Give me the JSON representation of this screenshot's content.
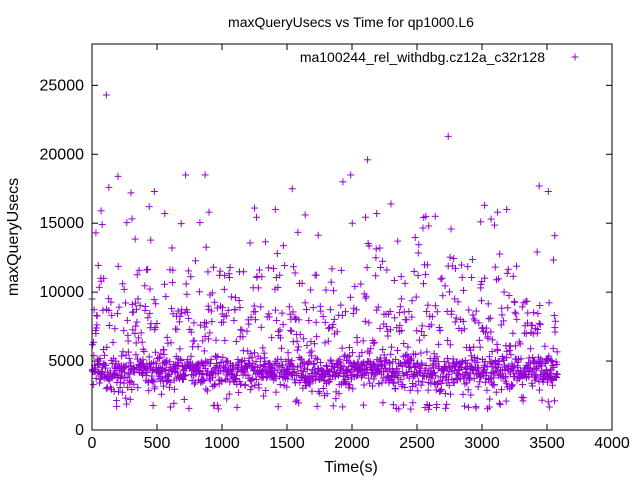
{
  "chart_data": {
    "type": "scatter",
    "title": "maxQueryUsecs vs Time for qp1000.L6",
    "xlabel": "Time(s)",
    "ylabel": "maxQueryUsecs",
    "xlim": [
      0,
      4000
    ],
    "ylim": [
      0,
      28000
    ],
    "x_ticks": [
      0,
      500,
      1000,
      1500,
      2000,
      2500,
      3000,
      3500,
      4000
    ],
    "y_ticks": [
      0,
      5000,
      10000,
      15000,
      20000,
      25000
    ],
    "grid": false,
    "legend_position": "top-right",
    "series": [
      {
        "name": "ma100244_rel_withdbg.cz12a_c32r128",
        "marker": "plus",
        "color": "#9400d3",
        "x_range": [
          0,
          3580
        ],
        "sample_interval_s": 2,
        "notes_visible_outliers": true,
        "points": [
          [
            110,
            24300
          ],
          [
            2740,
            21300
          ],
          [
            2120,
            19600
          ],
          [
            1930,
            18000
          ],
          [
            200,
            18400
          ],
          [
            720,
            18500
          ],
          [
            870,
            18500
          ],
          [
            1990,
            18500
          ],
          [
            130,
            17600
          ],
          [
            300,
            17200
          ],
          [
            480,
            17300
          ],
          [
            1540,
            17500
          ],
          [
            3440,
            17700
          ],
          [
            3510,
            17300
          ],
          [
            2300,
            16400
          ],
          [
            3020,
            16300
          ],
          [
            3190,
            16000
          ],
          [
            440,
            16200
          ],
          [
            1410,
            16000
          ],
          [
            1250,
            16100
          ],
          [
            70,
            15900
          ],
          [
            560,
            15700
          ],
          [
            900,
            15800
          ],
          [
            1640,
            15600
          ],
          [
            2190,
            15700
          ],
          [
            2640,
            15500
          ],
          [
            3120,
            15800
          ],
          [
            3560,
            14100
          ],
          [
            30,
            14300
          ],
          [
            2590,
            14800
          ],
          [
            2990,
            15100
          ],
          [
            3070,
            15300
          ]
        ]
      }
    ]
  }
}
